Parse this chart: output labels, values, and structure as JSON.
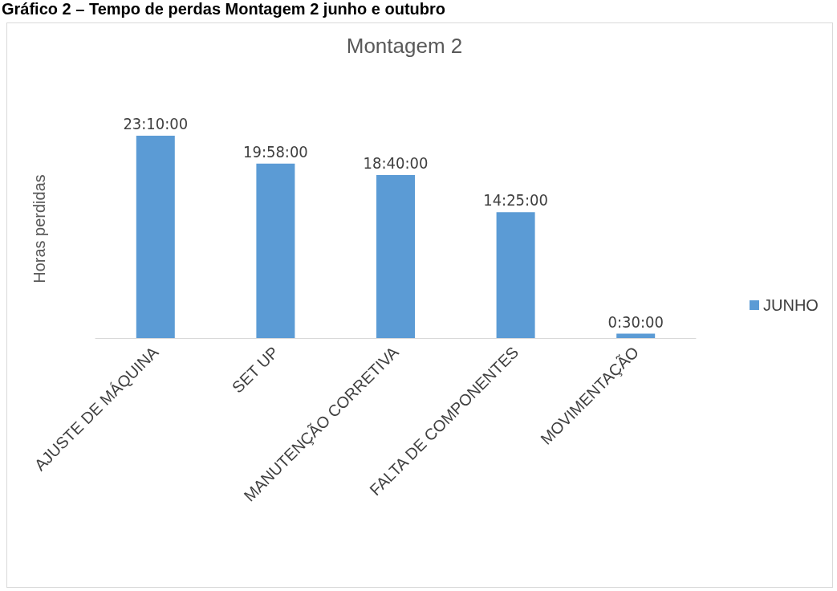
{
  "chart_data": {
    "type": "bar",
    "title": "Gráfico 2 – Tempo de perdas Montagem 2 junho e outubro",
    "subtitle": "Montagem 2",
    "ylabel": "Horas perdidas",
    "categories": [
      "AJUSTE DE MÁQUINA",
      "SET UP",
      "MANUTENÇÃO CORRETIVA",
      "FALTA DE COMPONENTES",
      "MOVIMENTAÇÃO"
    ],
    "series": [
      {
        "name": "JUNHO",
        "color": "#5b9bd5",
        "values": [
          23.1667,
          19.9667,
          18.6667,
          14.4167,
          0.5
        ],
        "value_labels": [
          "23:10:00",
          "19:58:00",
          "18:40:00",
          "14:25:00",
          "0:30:00"
        ]
      }
    ],
    "legend": "right",
    "grid": false
  }
}
